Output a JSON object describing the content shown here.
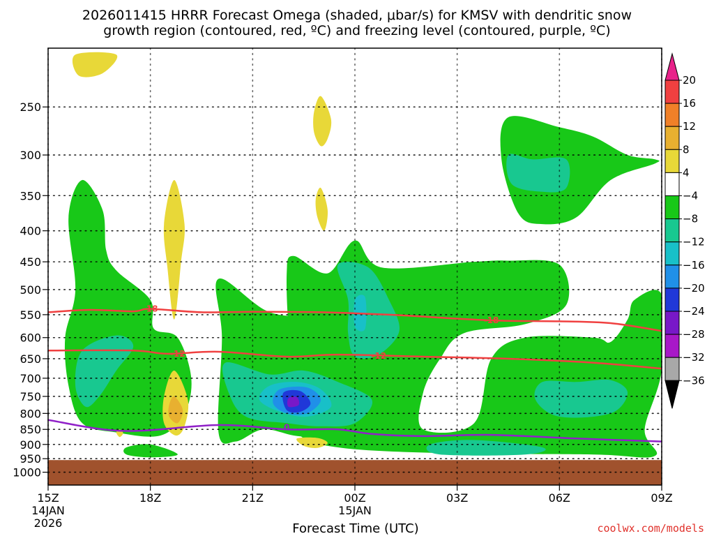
{
  "chart_data": {
    "type": "heatmap",
    "title": "2026011415 HRRR Forecast Omega (shaded, μbar/s) for KMSV with dendritic snow growth region (contoured, red, ºC) and freezing level (contoured, purple, ºC)",
    "title_lines": [
      "2026011415 HRRR Forecast Omega (shaded, μbar/s) for KMSV with dendritic snow",
      "growth region (contoured, red, ºC) and freezing level (contoured, purple, ºC)"
    ],
    "xlabel": "Forecast Time (UTC)",
    "ylabel": "",
    "credit": "coolwx.com/models",
    "x_ticks": [
      {
        "hour": 0,
        "label": "15Z",
        "sub": [
          "14JAN",
          "2026"
        ]
      },
      {
        "hour": 3,
        "label": "18Z",
        "sub": []
      },
      {
        "hour": 6,
        "label": "21Z",
        "sub": []
      },
      {
        "hour": 9,
        "label": "00Z",
        "sub": [
          "15JAN"
        ]
      },
      {
        "hour": 12,
        "label": "03Z",
        "sub": []
      },
      {
        "hour": 15,
        "label": "06Z",
        "sub": []
      },
      {
        "hour": 18,
        "label": "09Z",
        "sub": []
      }
    ],
    "xlim": [
      0,
      18
    ],
    "y_ticks": [
      250,
      300,
      350,
      400,
      450,
      500,
      550,
      600,
      650,
      700,
      750,
      800,
      850,
      900,
      950,
      1000
    ],
    "ylim": [
      1050,
      200
    ],
    "yscale": "log",
    "grid": true,
    "colorbar": {
      "levels": [
        -36,
        -32,
        -28,
        -24,
        -20,
        -16,
        -12,
        -8,
        -4,
        4,
        8,
        12,
        16,
        20
      ],
      "labels": [
        "20",
        "16",
        "12",
        "8",
        "4",
        "−4",
        "−8",
        "−12",
        "−16",
        "−20",
        "−24",
        "−28",
        "−32",
        "−36"
      ],
      "colors": {
        "gt20": "#e8228a",
        "16_20": "#f04040",
        "12_16": "#f08028",
        "8_12": "#e8b030",
        "4_8": "#e8d838",
        "m4_4": "#ffffff",
        "m8_m4": "#18c818",
        "m12_m8": "#18c890",
        "m16_m12": "#18c0c8",
        "m20_m16": "#2090e8",
        "m24_m20": "#2038d8",
        "m28_m24": "#7818c8",
        "m32_m28": "#a818c8",
        "m36_m32": "#a8a8a8",
        "lt_m36": "#000000"
      }
    },
    "colors": {
      "ground": "#a0522d",
      "dgz_contour": "#f04040",
      "freezing_contour": "#9020c8"
    },
    "contours": [
      {
        "name": "-18 °C",
        "label": "-18",
        "color": "#f04040",
        "points": [
          [
            0,
            545
          ],
          [
            1.2,
            540
          ],
          [
            2.5,
            543
          ],
          [
            3.0,
            538
          ],
          [
            4.5,
            545
          ],
          [
            6.0,
            544
          ],
          [
            8.0,
            545
          ],
          [
            10.0,
            550
          ],
          [
            13.0,
            562
          ],
          [
            15.0,
            564
          ],
          [
            16.5,
            568
          ],
          [
            18.0,
            585
          ]
        ],
        "label_at": [
          [
            3.0,
            538
          ],
          [
            13.0,
            562
          ]
        ]
      },
      {
        "name": "-12 °C",
        "label": "-12",
        "color": "#f04040",
        "points": [
          [
            0,
            630
          ],
          [
            2.5,
            630
          ],
          [
            3.5,
            638
          ],
          [
            5.0,
            633
          ],
          [
            7.0,
            645
          ],
          [
            8.5,
            640
          ],
          [
            11.0,
            645
          ],
          [
            13.5,
            650
          ],
          [
            16.0,
            660
          ],
          [
            18.0,
            675
          ]
        ],
        "label_at": [
          [
            3.8,
            638
          ],
          [
            9.7,
            643
          ]
        ]
      },
      {
        "name": "0 °C",
        "label": "0",
        "color": "#9020c8",
        "points": [
          [
            0,
            820
          ],
          [
            2.2,
            855
          ],
          [
            5.0,
            836
          ],
          [
            7.0,
            850
          ],
          [
            8.5,
            850
          ],
          [
            9.5,
            865
          ],
          [
            11.0,
            872
          ],
          [
            13.0,
            868
          ],
          [
            15.5,
            880
          ],
          [
            18.0,
            890
          ]
        ],
        "label_at": [
          [
            7.0,
            844
          ]
        ]
      }
    ],
    "omega_regions": [
      {
        "range": "-8 to -4",
        "color": "#18c818",
        "pts": [
          [
            1.0,
            330
          ],
          [
            1.6,
            370
          ],
          [
            1.7,
            430
          ],
          [
            2.0,
            465
          ],
          [
            3.0,
            520
          ],
          [
            3.1,
            580
          ],
          [
            3.8,
            600
          ],
          [
            4.2,
            700
          ],
          [
            4.0,
            800
          ],
          [
            3.3,
            870
          ],
          [
            2.0,
            860
          ],
          [
            1.0,
            830
          ],
          [
            0.6,
            720
          ],
          [
            0.5,
            600
          ],
          [
            0.8,
            500
          ],
          [
            0.6,
            380
          ]
        ]
      },
      {
        "range": "-8 to -4",
        "color": "#18c818",
        "pts": [
          [
            5.0,
            480
          ],
          [
            6.5,
            545
          ],
          [
            8.2,
            560
          ],
          [
            8.8,
            610
          ],
          [
            9.2,
            680
          ],
          [
            10.0,
            770
          ],
          [
            9.7,
            860
          ],
          [
            9.0,
            900
          ],
          [
            8.0,
            880
          ],
          [
            7.2,
            870
          ],
          [
            6.3,
            850
          ],
          [
            5.5,
            890
          ],
          [
            5.0,
            860
          ],
          [
            5.1,
            600
          ]
        ]
      },
      {
        "range": "-8 to -4",
        "color": "#18c818",
        "pts": [
          [
            7.0,
            470
          ],
          [
            7.2,
            440
          ],
          [
            8.2,
            470
          ],
          [
            9.0,
            415
          ],
          [
            9.8,
            460
          ],
          [
            12.5,
            450
          ],
          [
            13.5,
            448
          ],
          [
            15.0,
            455
          ],
          [
            15.2,
            530
          ],
          [
            14.0,
            570
          ],
          [
            12.2,
            590
          ],
          [
            11.5,
            650
          ],
          [
            11.0,
            740
          ],
          [
            11.0,
            850
          ],
          [
            12.5,
            830
          ],
          [
            13.0,
            650
          ],
          [
            14.0,
            600
          ],
          [
            16.0,
            600
          ],
          [
            16.5,
            610
          ],
          [
            17.0,
            560
          ],
          [
            17.2,
            520
          ],
          [
            18.0,
            510
          ],
          [
            18.0,
            680
          ],
          [
            17.5,
            850
          ],
          [
            17.8,
            940
          ],
          [
            16.0,
            935
          ],
          [
            11.5,
            930
          ],
          [
            8.5,
            910
          ],
          [
            7.3,
            860
          ],
          [
            6.8,
            720
          ],
          [
            7.5,
            660
          ],
          [
            7.1,
            600
          ]
        ]
      },
      {
        "range": "-8 to -4",
        "color": "#18c818",
        "pts": [
          [
            13.5,
            260
          ],
          [
            15.0,
            270
          ],
          [
            16.0,
            280
          ],
          [
            17.0,
            300
          ],
          [
            17.8,
            305
          ],
          [
            17.8,
            310
          ],
          [
            16.5,
            330
          ],
          [
            15.5,
            380
          ],
          [
            14.5,
            390
          ],
          [
            13.8,
            375
          ],
          [
            13.3,
            305
          ]
        ]
      },
      {
        "range": "-8 to -4",
        "color": "#18c818",
        "pts": [
          [
            2.3,
            910
          ],
          [
            3.0,
            900
          ],
          [
            3.8,
            935
          ],
          [
            3.0,
            945
          ],
          [
            2.3,
            935
          ]
        ]
      },
      {
        "range": "-12 to -8",
        "color": "#18c890",
        "pts": [
          [
            1.0,
            630
          ],
          [
            2.0,
            595
          ],
          [
            2.5,
            620
          ],
          [
            2.0,
            680
          ],
          [
            1.5,
            750
          ],
          [
            1.1,
            780
          ],
          [
            0.8,
            720
          ]
        ]
      },
      {
        "range": "-12 to -8",
        "color": "#18c890",
        "pts": [
          [
            5.2,
            660
          ],
          [
            6.5,
            690
          ],
          [
            7.5,
            680
          ],
          [
            8.5,
            710
          ],
          [
            9.5,
            760
          ],
          [
            9.0,
            830
          ],
          [
            8.0,
            840
          ],
          [
            7.0,
            830
          ],
          [
            5.8,
            810
          ],
          [
            5.3,
            740
          ]
        ]
      },
      {
        "range": "-12 to -8",
        "color": "#18c890",
        "pts": [
          [
            8.5,
            455
          ],
          [
            9.4,
            460
          ],
          [
            10.0,
            520
          ],
          [
            10.3,
            585
          ],
          [
            9.7,
            640
          ],
          [
            9.0,
            645
          ],
          [
            8.8,
            590
          ],
          [
            8.8,
            520
          ]
        ]
      },
      {
        "range": "-12 to -8",
        "color": "#18c890",
        "pts": [
          [
            13.5,
            300
          ],
          [
            14.2,
            305
          ],
          [
            15.2,
            305
          ],
          [
            15.2,
            340
          ],
          [
            14.5,
            345
          ],
          [
            13.6,
            335
          ]
        ]
      },
      {
        "range": "-12 to -8",
        "color": "#18c890",
        "pts": [
          [
            14.5,
            710
          ],
          [
            15.5,
            710
          ],
          [
            16.5,
            705
          ],
          [
            17.0,
            740
          ],
          [
            16.5,
            800
          ],
          [
            15.0,
            810
          ],
          [
            14.3,
            760
          ]
        ]
      },
      {
        "range": "-12 to -8",
        "color": "#18c890",
        "pts": [
          [
            11.2,
            900
          ],
          [
            12.5,
            885
          ],
          [
            14.5,
            910
          ],
          [
            14.0,
            935
          ],
          [
            11.5,
            935
          ]
        ]
      },
      {
        "range": "-16 to -12",
        "color": "#18c0c8",
        "pts": [
          [
            6.5,
            720
          ],
          [
            7.3,
            710
          ],
          [
            8.0,
            730
          ],
          [
            8.3,
            780
          ],
          [
            7.6,
            810
          ],
          [
            6.8,
            795
          ],
          [
            6.2,
            760
          ]
        ]
      },
      {
        "range": "-16 to -12",
        "color": "#18c0c8",
        "pts": [
          [
            9.0,
            520
          ],
          [
            9.3,
            515
          ],
          [
            9.3,
            580
          ],
          [
            9.0,
            575
          ]
        ]
      },
      {
        "range": "-20 to -16",
        "color": "#2090e8",
        "pts": [
          [
            6.8,
            730
          ],
          [
            7.6,
            725
          ],
          [
            8.0,
            760
          ],
          [
            7.6,
            800
          ],
          [
            7.0,
            800
          ],
          [
            6.6,
            770
          ]
        ]
      },
      {
        "range": "-24 to -20",
        "color": "#2038d8",
        "pts": [
          [
            6.9,
            740
          ],
          [
            7.4,
            735
          ],
          [
            7.7,
            770
          ],
          [
            7.4,
            795
          ],
          [
            7.0,
            790
          ]
        ]
      },
      {
        "range": "-28 to -24",
        "color": "#7818c8",
        "pts": [
          [
            7.05,
            755
          ],
          [
            7.3,
            752
          ],
          [
            7.35,
            775
          ],
          [
            7.05,
            780
          ]
        ]
      },
      {
        "range": "4 to 8",
        "color": "#e8d838",
        "pts": [
          [
            0.8,
            205
          ],
          [
            2.0,
            205
          ],
          [
            1.6,
            220
          ],
          [
            0.9,
            222
          ]
        ]
      },
      {
        "range": "4 to 8",
        "color": "#e8d838",
        "pts": [
          [
            8.0,
            240
          ],
          [
            8.3,
            262
          ],
          [
            8.2,
            282
          ],
          [
            8.0,
            290
          ],
          [
            7.8,
            275
          ],
          [
            7.8,
            255
          ]
        ]
      },
      {
        "range": "4 to 8",
        "color": "#e8d838",
        "pts": [
          [
            8.0,
            340
          ],
          [
            8.2,
            370
          ],
          [
            8.1,
            400
          ],
          [
            7.9,
            380
          ],
          [
            7.85,
            355
          ]
        ]
      },
      {
        "range": "4 to 8",
        "color": "#e8d838",
        "pts": [
          [
            3.7,
            330
          ],
          [
            4.0,
            390
          ],
          [
            3.9,
            450
          ],
          [
            3.7,
            560
          ],
          [
            3.5,
            460
          ],
          [
            3.4,
            390
          ]
        ]
      },
      {
        "range": "4 to 8",
        "color": "#e8d838",
        "pts": [
          [
            3.7,
            680
          ],
          [
            4.1,
            760
          ],
          [
            4.0,
            840
          ],
          [
            3.75,
            870
          ],
          [
            3.4,
            830
          ],
          [
            3.4,
            750
          ]
        ]
      },
      {
        "range": "4 to 8",
        "color": "#e8d838",
        "pts": [
          [
            7.3,
            880
          ],
          [
            7.9,
            878
          ],
          [
            8.2,
            895
          ],
          [
            7.9,
            912
          ],
          [
            7.5,
            905
          ]
        ]
      },
      {
        "range": "4 to 8",
        "color": "#e8d838",
        "pts": [
          [
            2.0,
            860
          ],
          [
            2.1,
            850
          ],
          [
            2.2,
            862
          ],
          [
            2.1,
            875
          ]
        ]
      },
      {
        "range": "8 to 12",
        "color": "#e8b030",
        "pts": [
          [
            3.7,
            750
          ],
          [
            3.95,
            790
          ],
          [
            3.8,
            830
          ],
          [
            3.55,
            810
          ],
          [
            3.55,
            775
          ]
        ]
      }
    ],
    "ground_from_hpa": 955
  }
}
